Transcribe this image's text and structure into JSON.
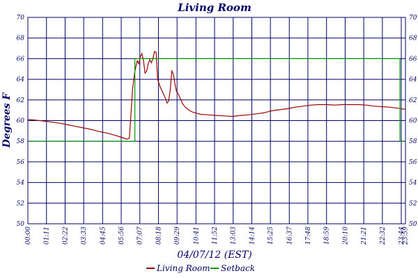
{
  "chart_data": {
    "type": "line",
    "title": "Living Room",
    "xlabel": "04/07/12 (EST)",
    "ylabel": "Degrees F",
    "ylim": [
      50,
      70
    ],
    "xlim_hours": [
      0,
      24
    ],
    "grid": true,
    "legend_placement": "bottom",
    "y_ticks": [
      "50",
      "52",
      "54",
      "56",
      "58",
      "60",
      "62",
      "64",
      "66",
      "68",
      "70"
    ],
    "x_ticks": [
      {
        "label": "00:00",
        "hour": 0
      },
      {
        "label": "01:11",
        "hour": 1.1833
      },
      {
        "label": "02:22",
        "hour": 2.3667
      },
      {
        "label": "03:33",
        "hour": 3.55
      },
      {
        "label": "04:45",
        "hour": 4.75
      },
      {
        "label": "05:56",
        "hour": 5.9333
      },
      {
        "label": "07:07",
        "hour": 7.1167
      },
      {
        "label": "08:18",
        "hour": 8.3
      },
      {
        "label": "09:29",
        "hour": 9.4833
      },
      {
        "label": "10:41",
        "hour": 10.6833
      },
      {
        "label": "11:52",
        "hour": 11.8667
      },
      {
        "label": "13:03",
        "hour": 13.05
      },
      {
        "label": "14:14",
        "hour": 14.2333
      },
      {
        "label": "15:25",
        "hour": 15.4167
      },
      {
        "label": "16:37",
        "hour": 16.6167
      },
      {
        "label": "17:48",
        "hour": 17.8
      },
      {
        "label": "18:59",
        "hour": 18.9833
      },
      {
        "label": "20:10",
        "hour": 20.1667
      },
      {
        "label": "21:21",
        "hour": 21.35
      },
      {
        "label": "22:32",
        "hour": 22.5333
      },
      {
        "label": "23:44",
        "hour": 23.7333
      },
      {
        "label": "23:59",
        "hour": 23.9833
      }
    ],
    "series": [
      {
        "name": "Living Room",
        "color": "#990000",
        "points": [
          [
            0,
            60.1
          ],
          [
            0.5,
            60.05
          ],
          [
            1,
            59.95
          ],
          [
            1.5,
            59.85
          ],
          [
            2,
            59.75
          ],
          [
            2.5,
            59.6
          ],
          [
            3,
            59.45
          ],
          [
            3.5,
            59.3
          ],
          [
            4,
            59.15
          ],
          [
            4.5,
            58.95
          ],
          [
            5,
            58.8
          ],
          [
            5.5,
            58.6
          ],
          [
            6,
            58.35
          ],
          [
            6.3,
            58.2
          ],
          [
            6.45,
            58.3
          ],
          [
            6.55,
            60.5
          ],
          [
            6.65,
            63
          ],
          [
            6.8,
            64.8
          ],
          [
            6.95,
            65.8
          ],
          [
            7.05,
            65.5
          ],
          [
            7.15,
            66.2
          ],
          [
            7.25,
            66.5
          ],
          [
            7.35,
            65.8
          ],
          [
            7.45,
            64.6
          ],
          [
            7.55,
            64.8
          ],
          [
            7.65,
            65.5
          ],
          [
            7.75,
            65.9
          ],
          [
            7.85,
            65.6
          ],
          [
            7.95,
            66
          ],
          [
            8.05,
            66.7
          ],
          [
            8.15,
            66.6
          ],
          [
            8.25,
            64
          ],
          [
            8.4,
            63.3
          ],
          [
            8.55,
            62.8
          ],
          [
            8.7,
            62.3
          ],
          [
            8.85,
            61.7
          ],
          [
            8.95,
            61.9
          ],
          [
            9.05,
            63
          ],
          [
            9.15,
            64.8
          ],
          [
            9.25,
            64.5
          ],
          [
            9.35,
            63.5
          ],
          [
            9.45,
            62.8
          ],
          [
            9.55,
            62.6
          ],
          [
            9.7,
            62.1
          ],
          [
            9.85,
            61.6
          ],
          [
            10,
            61.3
          ],
          [
            10.25,
            61
          ],
          [
            10.5,
            60.8
          ],
          [
            10.75,
            60.7
          ],
          [
            11,
            60.6
          ],
          [
            11.5,
            60.55
          ],
          [
            12,
            60.5
          ],
          [
            12.5,
            60.45
          ],
          [
            13,
            60.4
          ],
          [
            13.5,
            60.5
          ],
          [
            14,
            60.55
          ],
          [
            14.5,
            60.65
          ],
          [
            15,
            60.75
          ],
          [
            15.5,
            60.95
          ],
          [
            16,
            61.05
          ],
          [
            16.5,
            61.15
          ],
          [
            17,
            61.3
          ],
          [
            17.5,
            61.4
          ],
          [
            18,
            61.5
          ],
          [
            18.5,
            61.55
          ],
          [
            19,
            61.55
          ],
          [
            19.5,
            61.5
          ],
          [
            20,
            61.55
          ],
          [
            20.5,
            61.55
          ],
          [
            21,
            61.55
          ],
          [
            21.5,
            61.5
          ],
          [
            22,
            61.4
          ],
          [
            22.5,
            61.35
          ],
          [
            23,
            61.3
          ],
          [
            23.5,
            61.2
          ],
          [
            23.98,
            61.1
          ]
        ]
      },
      {
        "name": "Setback",
        "color": "#009900",
        "points": [
          [
            0,
            58
          ],
          [
            6.8,
            58
          ],
          [
            6.8,
            66
          ],
          [
            23.65,
            66
          ],
          [
            23.65,
            58
          ],
          [
            23.98,
            58
          ]
        ]
      }
    ]
  }
}
